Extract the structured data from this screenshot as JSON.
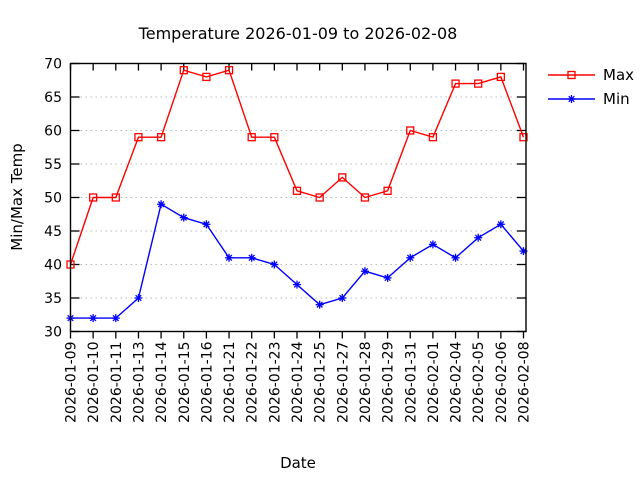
{
  "chart_data": {
    "type": "line",
    "title": "Temperature 2026-01-09 to 2026-02-08",
    "xlabel": "Date",
    "ylabel": "Min/Max Temp",
    "ylim": [
      30,
      70
    ],
    "yticks": [
      30,
      35,
      40,
      45,
      50,
      55,
      60,
      65,
      70
    ],
    "categories": [
      "2026-01-09",
      "2026-01-10",
      "2026-01-11",
      "2026-01-13",
      "2026-01-14",
      "2026-01-15",
      "2026-01-16",
      "2026-01-21",
      "2026-01-22",
      "2026-01-23",
      "2026-01-24",
      "2026-01-25",
      "2026-01-27",
      "2026-01-28",
      "2026-01-29",
      "2026-01-31",
      "2026-02-01",
      "2026-02-04",
      "2026-02-05",
      "2026-02-06",
      "2026-02-08"
    ],
    "series": [
      {
        "name": "Max",
        "color": "#ff0000",
        "marker": "open-square",
        "values": [
          40,
          50,
          50,
          59,
          59,
          69,
          68,
          69,
          59,
          59,
          51,
          50,
          53,
          50,
          51,
          60,
          59,
          67,
          67,
          68,
          59
        ]
      },
      {
        "name": "Min",
        "color": "#0000ff",
        "marker": "asterisk",
        "values": [
          32,
          32,
          32,
          35,
          49,
          47,
          46,
          41,
          41,
          40,
          37,
          34,
          35,
          39,
          38,
          41,
          43,
          41,
          44,
          46,
          42
        ]
      }
    ],
    "grid": {
      "horizontal": true,
      "style": "dotted",
      "color": "#bbbbbb"
    },
    "legend_position": "outside-top-right",
    "axis_color": "#000000",
    "background": "#ffffff"
  }
}
